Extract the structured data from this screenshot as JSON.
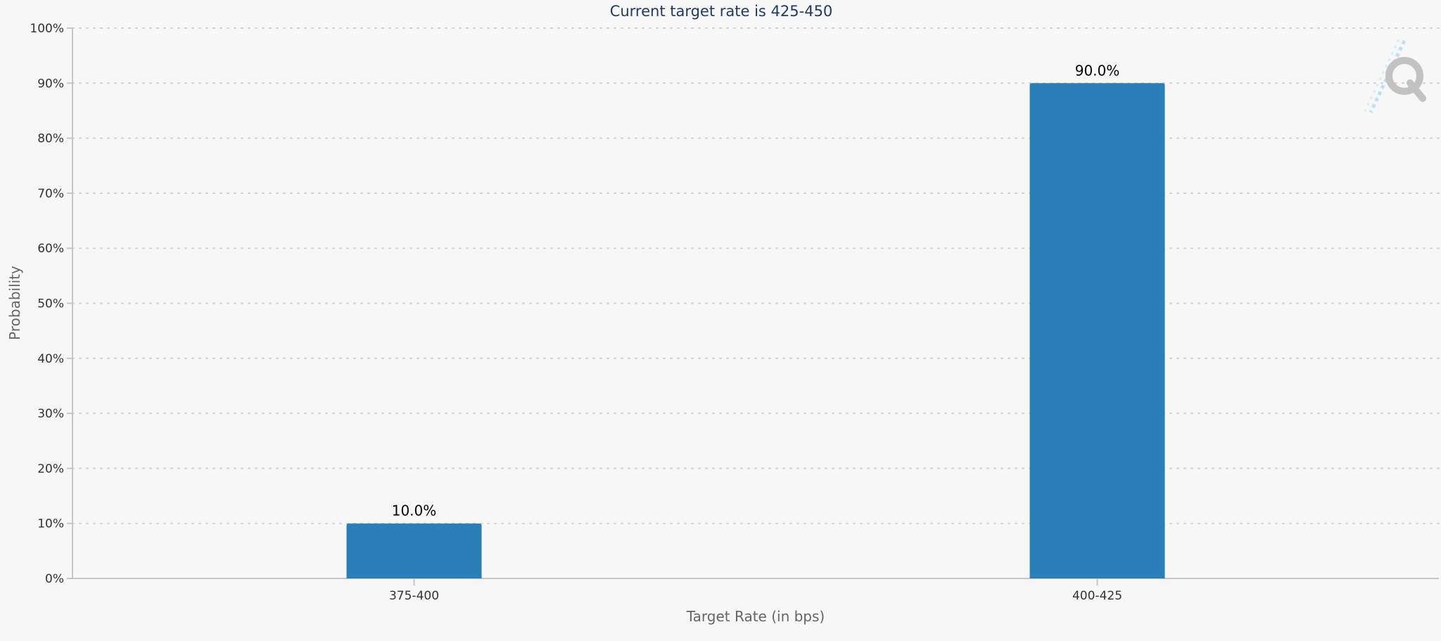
{
  "chart_data": {
    "type": "bar",
    "title": "Current target rate is 425-450",
    "xlabel": "Target Rate (in bps)",
    "ylabel": "Probability",
    "categories": [
      "375-400",
      "400-425"
    ],
    "values": [
      10.0,
      90.0
    ],
    "data_labels": [
      "10.0%",
      "90.0%"
    ],
    "ylim": [
      0,
      100
    ],
    "yticks": [
      0,
      10,
      20,
      30,
      40,
      50,
      60,
      70,
      80,
      90,
      100
    ],
    "ytick_labels": [
      "0%",
      "10%",
      "20%",
      "30%",
      "40%",
      "50%",
      "60%",
      "70%",
      "80%",
      "90%",
      "100%"
    ],
    "grid": true,
    "legend": "none",
    "bar_color": "#2a7fb8"
  },
  "watermark": {
    "text": "Q",
    "icon": "q-logo-icon"
  }
}
